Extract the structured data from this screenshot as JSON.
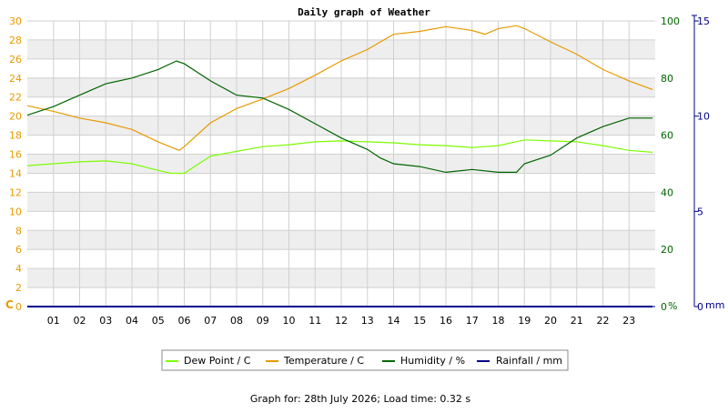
{
  "chart_data": {
    "type": "line",
    "title": "Daily graph of Weather",
    "footer": "Graph for: 28th July 2026; Load time: 0.32 s",
    "colors": {
      "dew_point": "#7cfc00",
      "temperature": "#e69a00",
      "humidity": "#006400",
      "rainfall": "#00008b",
      "band": "#eeeeee",
      "grid": "#d0d0d0"
    },
    "x_axis": {
      "min": 0,
      "max": 24,
      "ticks": [
        "01",
        "02",
        "03",
        "04",
        "05",
        "06",
        "07",
        "08",
        "09",
        "10",
        "11",
        "12",
        "13",
        "14",
        "15",
        "16",
        "17",
        "18",
        "19",
        "20",
        "21",
        "22",
        "23"
      ]
    },
    "y_left": {
      "unit": "C",
      "min": 0,
      "max": 30,
      "ticks": [
        "0",
        "2",
        "4",
        "6",
        "8",
        "10",
        "12",
        "14",
        "16",
        "18",
        "20",
        "22",
        "24",
        "26",
        "28",
        "30"
      ]
    },
    "y_mid": {
      "unit": "%",
      "min": 0,
      "max": 100,
      "ticks": [
        "0",
        "20",
        "40",
        "60",
        "80",
        "100"
      ]
    },
    "y_right": {
      "unit": "mm",
      "min": 0,
      "max": 15,
      "ticks": [
        "0",
        "5",
        "10",
        "15"
      ]
    },
    "legend": {
      "placement": "bottom-center",
      "entries": [
        "Dew Point / C",
        "Temperature / C",
        "Humidity / %",
        "Rainfall / mm"
      ]
    },
    "series": [
      {
        "name": "Dew Point / C",
        "axis": "left",
        "x": [
          0,
          1,
          2,
          3,
          4,
          5,
          5.5,
          6,
          7,
          8,
          9,
          10,
          11,
          12,
          13,
          14,
          15,
          16,
          17,
          18,
          19,
          20,
          21,
          22,
          23,
          23.9
        ],
        "y": [
          14.8,
          15.0,
          15.2,
          15.3,
          15.0,
          14.3,
          14.0,
          14.0,
          15.8,
          16.3,
          16.8,
          17.0,
          17.3,
          17.4,
          17.3,
          17.2,
          17.0,
          16.9,
          16.7,
          16.9,
          17.5,
          17.4,
          17.3,
          16.9,
          16.4,
          16.2
        ]
      },
      {
        "name": "Temperature / C",
        "axis": "left",
        "x": [
          0,
          1,
          2,
          3,
          4,
          5,
          5.8,
          6,
          7,
          8,
          9,
          10,
          11,
          12,
          13,
          14,
          15,
          16,
          17,
          17.5,
          18,
          18.7,
          19,
          20,
          21,
          22,
          23,
          23.9
        ],
        "y": [
          21.1,
          20.5,
          19.8,
          19.3,
          18.6,
          17.3,
          16.4,
          16.8,
          19.3,
          20.8,
          21.8,
          22.9,
          24.3,
          25.8,
          27.0,
          28.6,
          28.9,
          29.4,
          29.0,
          28.6,
          29.2,
          29.5,
          29.2,
          27.8,
          26.5,
          24.9,
          23.7,
          22.8
        ]
      },
      {
        "name": "Humidity / %",
        "axis": "mid",
        "x": [
          0,
          1,
          2,
          3,
          4,
          5,
          5.7,
          6,
          7,
          8,
          9,
          10,
          11,
          12,
          13,
          13.5,
          14,
          15,
          16,
          17,
          18,
          18.7,
          19,
          20,
          21,
          22,
          23,
          23.9
        ],
        "y": [
          67,
          70,
          74,
          78,
          80,
          83,
          86,
          85,
          79,
          74,
          73,
          69,
          64,
          59,
          55,
          52,
          50,
          49,
          47,
          48,
          47,
          47,
          50,
          53,
          59,
          63,
          66,
          66
        ]
      },
      {
        "name": "Rainfall / mm",
        "axis": "right",
        "x": [
          0,
          23.9
        ],
        "y": [
          0,
          0
        ]
      }
    ]
  }
}
